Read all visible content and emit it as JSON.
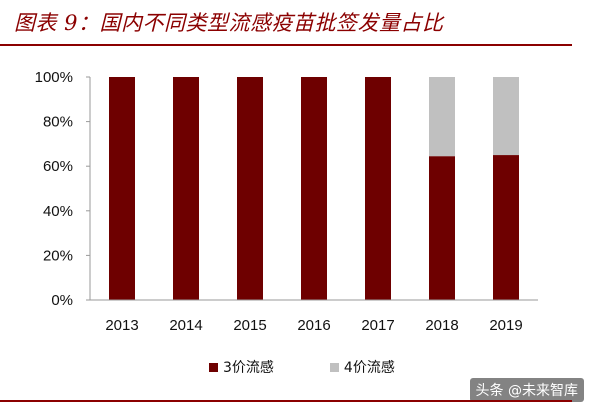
{
  "figure": {
    "title": "图表 9：国内不同类型流感疫苗批签发量占比",
    "accent_color": "#8b0000"
  },
  "chart_data": {
    "type": "bar",
    "stacked": true,
    "categories": [
      "2013",
      "2014",
      "2015",
      "2016",
      "2017",
      "2018",
      "2019"
    ],
    "series": [
      {
        "name": "3价流感",
        "color": "#6e0000",
        "values": [
          100,
          100,
          100,
          100,
          100,
          64.5,
          65
        ]
      },
      {
        "name": "4价流感",
        "color": "#c0c0c0",
        "values": [
          0,
          0,
          0,
          0,
          0,
          35.5,
          35
        ]
      }
    ],
    "ylim": [
      0,
      100
    ],
    "yticks": [
      "0%",
      "20%",
      "40%",
      "60%",
      "80%",
      "100%"
    ],
    "ytick_values": [
      0,
      20,
      40,
      60,
      80,
      100
    ],
    "grid": false,
    "legend_position": "bottom",
    "title": "",
    "xlabel": "",
    "ylabel": ""
  },
  "watermark": {
    "text": "头条 @未来智库"
  }
}
